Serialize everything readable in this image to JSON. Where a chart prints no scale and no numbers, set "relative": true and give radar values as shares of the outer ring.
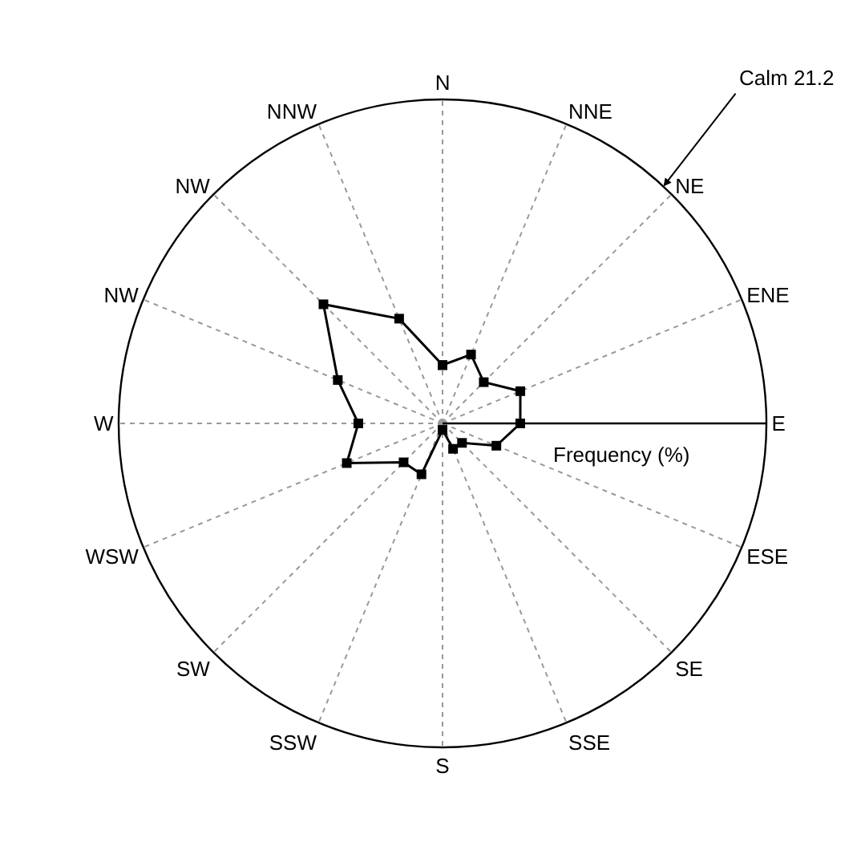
{
  "chart_data": {
    "type": "radar",
    "relative": true,
    "categories": [
      "N",
      "NNE",
      "NE",
      "ENE",
      "E",
      "ESE",
      "SE",
      "SSE",
      "S",
      "SSW",
      "SW",
      "WSW",
      "W",
      "NW",
      "NW",
      "NNW"
    ],
    "series": [
      {
        "color": "#000000",
        "values": [
          0.18,
          0.23,
          0.18,
          0.26,
          0.24,
          0.18,
          0.085,
          0.085,
          0.02,
          0.17,
          0.17,
          0.32,
          0.26,
          0.35,
          0.52,
          0.35
        ]
      }
    ],
    "ylabel": "Frequency (%)",
    "annotations": [
      "Calm 21.2"
    ],
    "marker": "square",
    "line_style": "solid",
    "grid": "x"
  }
}
